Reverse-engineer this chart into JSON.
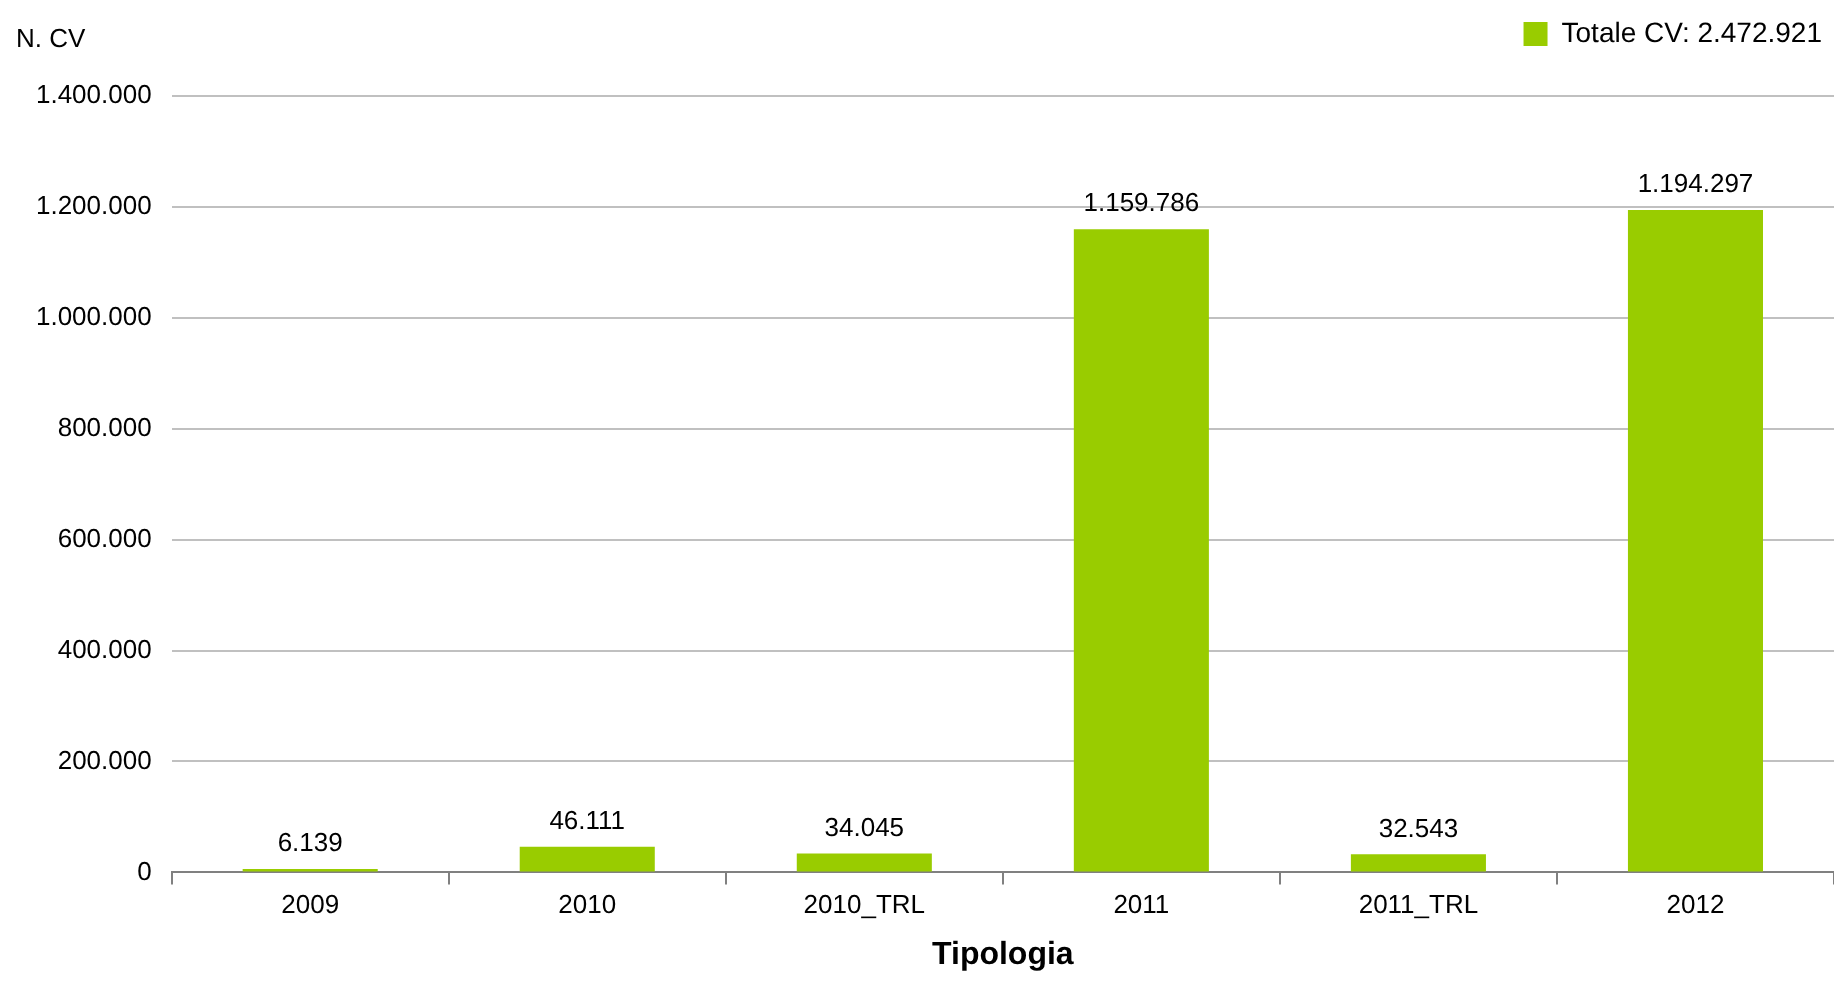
{
  "chart_data": {
    "type": "bar",
    "xlabel": "Tipologia",
    "ylabel": "N. CV",
    "categories": [
      "2009",
      "2010",
      "2010_TRL",
      "2011",
      "2011_TRL",
      "2012"
    ],
    "series": [
      {
        "name": "Totale CV: 2.472.921",
        "color": "#99cc00",
        "values": [
          6139,
          46111,
          34045,
          1159786,
          32543,
          1194297
        ],
        "value_labels": [
          "6.139",
          "46.111",
          "34.045",
          "1.159.786",
          "32.543",
          "1.194.297"
        ]
      }
    ],
    "ylim": [
      0,
      1400000
    ],
    "yticks": [
      {
        "value": 0,
        "label": "0"
      },
      {
        "value": 200000,
        "label": "200.000"
      },
      {
        "value": 400000,
        "label": "400.000"
      },
      {
        "value": 600000,
        "label": "600.000"
      },
      {
        "value": 800000,
        "label": "800.000"
      },
      {
        "value": 1000000,
        "label": "1.000.000"
      },
      {
        "value": 1200000,
        "label": "1.200.000"
      },
      {
        "value": 1400000,
        "label": "1.400.000"
      }
    ],
    "grid": "y",
    "legend": "top right"
  }
}
